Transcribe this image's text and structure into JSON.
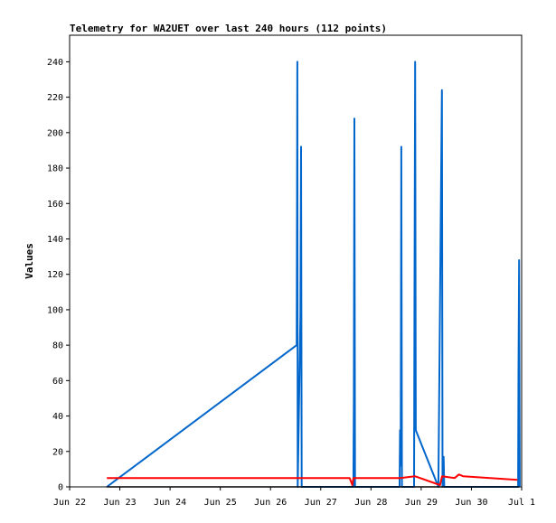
{
  "chart_data": {
    "type": "line",
    "title": "Telemetry for WA2UET over last 240 hours (112 points)",
    "xlabel": "",
    "ylabel": "Values",
    "x_tick_labels": [
      "Jun 22",
      "Jun 23",
      "Jun 24",
      "Jun 25",
      "Jun 26",
      "Jun 27",
      "Jun 28",
      "Jun 29",
      "Jun 30",
      "Jul 1"
    ],
    "x_tick_values": [
      0,
      24,
      48,
      72,
      96,
      120,
      144,
      168,
      192,
      216
    ],
    "xlim": [
      0,
      216
    ],
    "y_ticks": [
      0,
      20,
      40,
      60,
      80,
      100,
      120,
      140,
      160,
      180,
      200,
      220,
      240
    ],
    "ylim": [
      0,
      255
    ],
    "grid": false,
    "legend": "none",
    "series": [
      {
        "color": "#0066cc",
        "points": [
          [
            17.8,
            0
          ],
          [
            108.5,
            80
          ],
          [
            108.8,
            240
          ],
          [
            109.0,
            0
          ],
          [
            110.3,
            97
          ],
          [
            110.6,
            192
          ],
          [
            110.9,
            0
          ],
          [
            135.6,
            0
          ],
          [
            135.8,
            48
          ],
          [
            136.1,
            208
          ],
          [
            136.4,
            0
          ],
          [
            157.7,
            0
          ],
          [
            157.9,
            32
          ],
          [
            158.2,
            12
          ],
          [
            158.5,
            192
          ],
          [
            158.8,
            0
          ],
          [
            164.6,
            0
          ],
          [
            164.8,
            112
          ],
          [
            165.1,
            240
          ],
          [
            165.4,
            32
          ],
          [
            176.2,
            0
          ],
          [
            177.9,
            224
          ],
          [
            178.2,
            0
          ],
          [
            178.7,
            17
          ],
          [
            179.0,
            0
          ],
          [
            214.3,
            0
          ],
          [
            214.5,
            64
          ],
          [
            214.8,
            128
          ],
          [
            215.1,
            0
          ]
        ]
      },
      {
        "color": "#ff0000",
        "points": [
          [
            17.8,
            5
          ],
          [
            133.8,
            5
          ],
          [
            135.1,
            1
          ],
          [
            135.6,
            5
          ],
          [
            158.0,
            5
          ],
          [
            165.0,
            6
          ],
          [
            177.0,
            1
          ],
          [
            178.0,
            6
          ],
          [
            184.0,
            5
          ],
          [
            186.0,
            7
          ],
          [
            188.0,
            6
          ],
          [
            214.0,
            4
          ]
        ]
      },
      {
        "color": "#000000",
        "points": [
          [
            17.8,
            0
          ],
          [
            215.0,
            0
          ]
        ]
      }
    ]
  }
}
